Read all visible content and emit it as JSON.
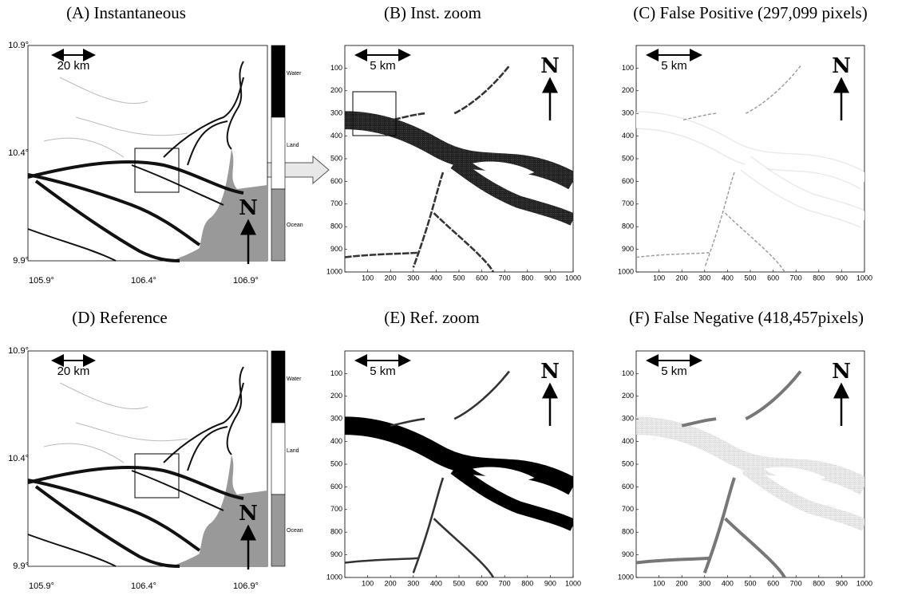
{
  "panels": [
    {
      "title": "(A) Instantaneous",
      "scale_label": "20 km",
      "north": "N",
      "xlim": [
        105.9,
        106.9
      ],
      "ylim": [
        9.9,
        10.9
      ],
      "xticks": [
        {
          "value": 105.9,
          "label": "105.9°"
        },
        {
          "value": 106.4,
          "label": "106.4°"
        },
        {
          "value": 106.9,
          "label": "106.9°"
        }
      ],
      "yticks": [
        {
          "value": 10.9,
          "label": "10.9°"
        },
        {
          "value": 10.4,
          "label": "10.4°"
        },
        {
          "value": 9.9,
          "label": "9.9°"
        }
      ],
      "colorbar": [
        "Water",
        "Land",
        "Ocean"
      ]
    },
    {
      "title": "(B) Inst. zoom",
      "scale_label": "5 km",
      "north": "N",
      "xlim": [
        0,
        1000
      ],
      "ylim": [
        0,
        1000
      ],
      "xticks": [
        100,
        200,
        300,
        400,
        500,
        600,
        700,
        800,
        900,
        1000
      ],
      "yticks": [
        100,
        200,
        300,
        400,
        500,
        600,
        700,
        800,
        900,
        1000
      ]
    },
    {
      "title": "(C) False Positive (297,099 pixels)",
      "scale_label": "5 km",
      "north": "N",
      "xlim": [
        0,
        1000
      ],
      "ylim": [
        0,
        1000
      ],
      "xticks": [
        100,
        200,
        300,
        400,
        500,
        600,
        700,
        800,
        900,
        1000
      ],
      "yticks": [
        100,
        200,
        300,
        400,
        500,
        600,
        700,
        800,
        900,
        1000
      ]
    },
    {
      "title": "(D) Reference",
      "scale_label": "20 km",
      "north": "N",
      "xlim": [
        105.9,
        106.9
      ],
      "ylim": [
        9.9,
        10.9
      ],
      "xticks": [
        {
          "value": 105.9,
          "label": "105.9°"
        },
        {
          "value": 106.4,
          "label": "106.4°"
        },
        {
          "value": 106.9,
          "label": "106.9°"
        }
      ],
      "yticks": [
        {
          "value": 10.9,
          "label": "10.9°"
        },
        {
          "value": 10.4,
          "label": "10.4°"
        },
        {
          "value": 9.9,
          "label": "9.9°"
        }
      ],
      "colorbar": [
        "Water",
        "Land",
        "Ocean"
      ]
    },
    {
      "title": "(E) Ref. zoom",
      "scale_label": "5 km",
      "north": "N",
      "xlim": [
        0,
        1000
      ],
      "ylim": [
        0,
        1000
      ],
      "xticks": [
        100,
        200,
        300,
        400,
        500,
        600,
        700,
        800,
        900,
        1000
      ],
      "yticks": [
        100,
        200,
        300,
        400,
        500,
        600,
        700,
        800,
        900,
        1000
      ]
    },
    {
      "title": "(F) False Negative (418,457pixels)",
      "scale_label": "5 km",
      "north": "N",
      "xlim": [
        0,
        1000
      ],
      "ylim": [
        0,
        1000
      ],
      "xticks": [
        100,
        200,
        300,
        400,
        500,
        600,
        700,
        800,
        900,
        1000
      ],
      "yticks": [
        100,
        200,
        300,
        400,
        500,
        600,
        700,
        800,
        900,
        1000
      ]
    }
  ]
}
